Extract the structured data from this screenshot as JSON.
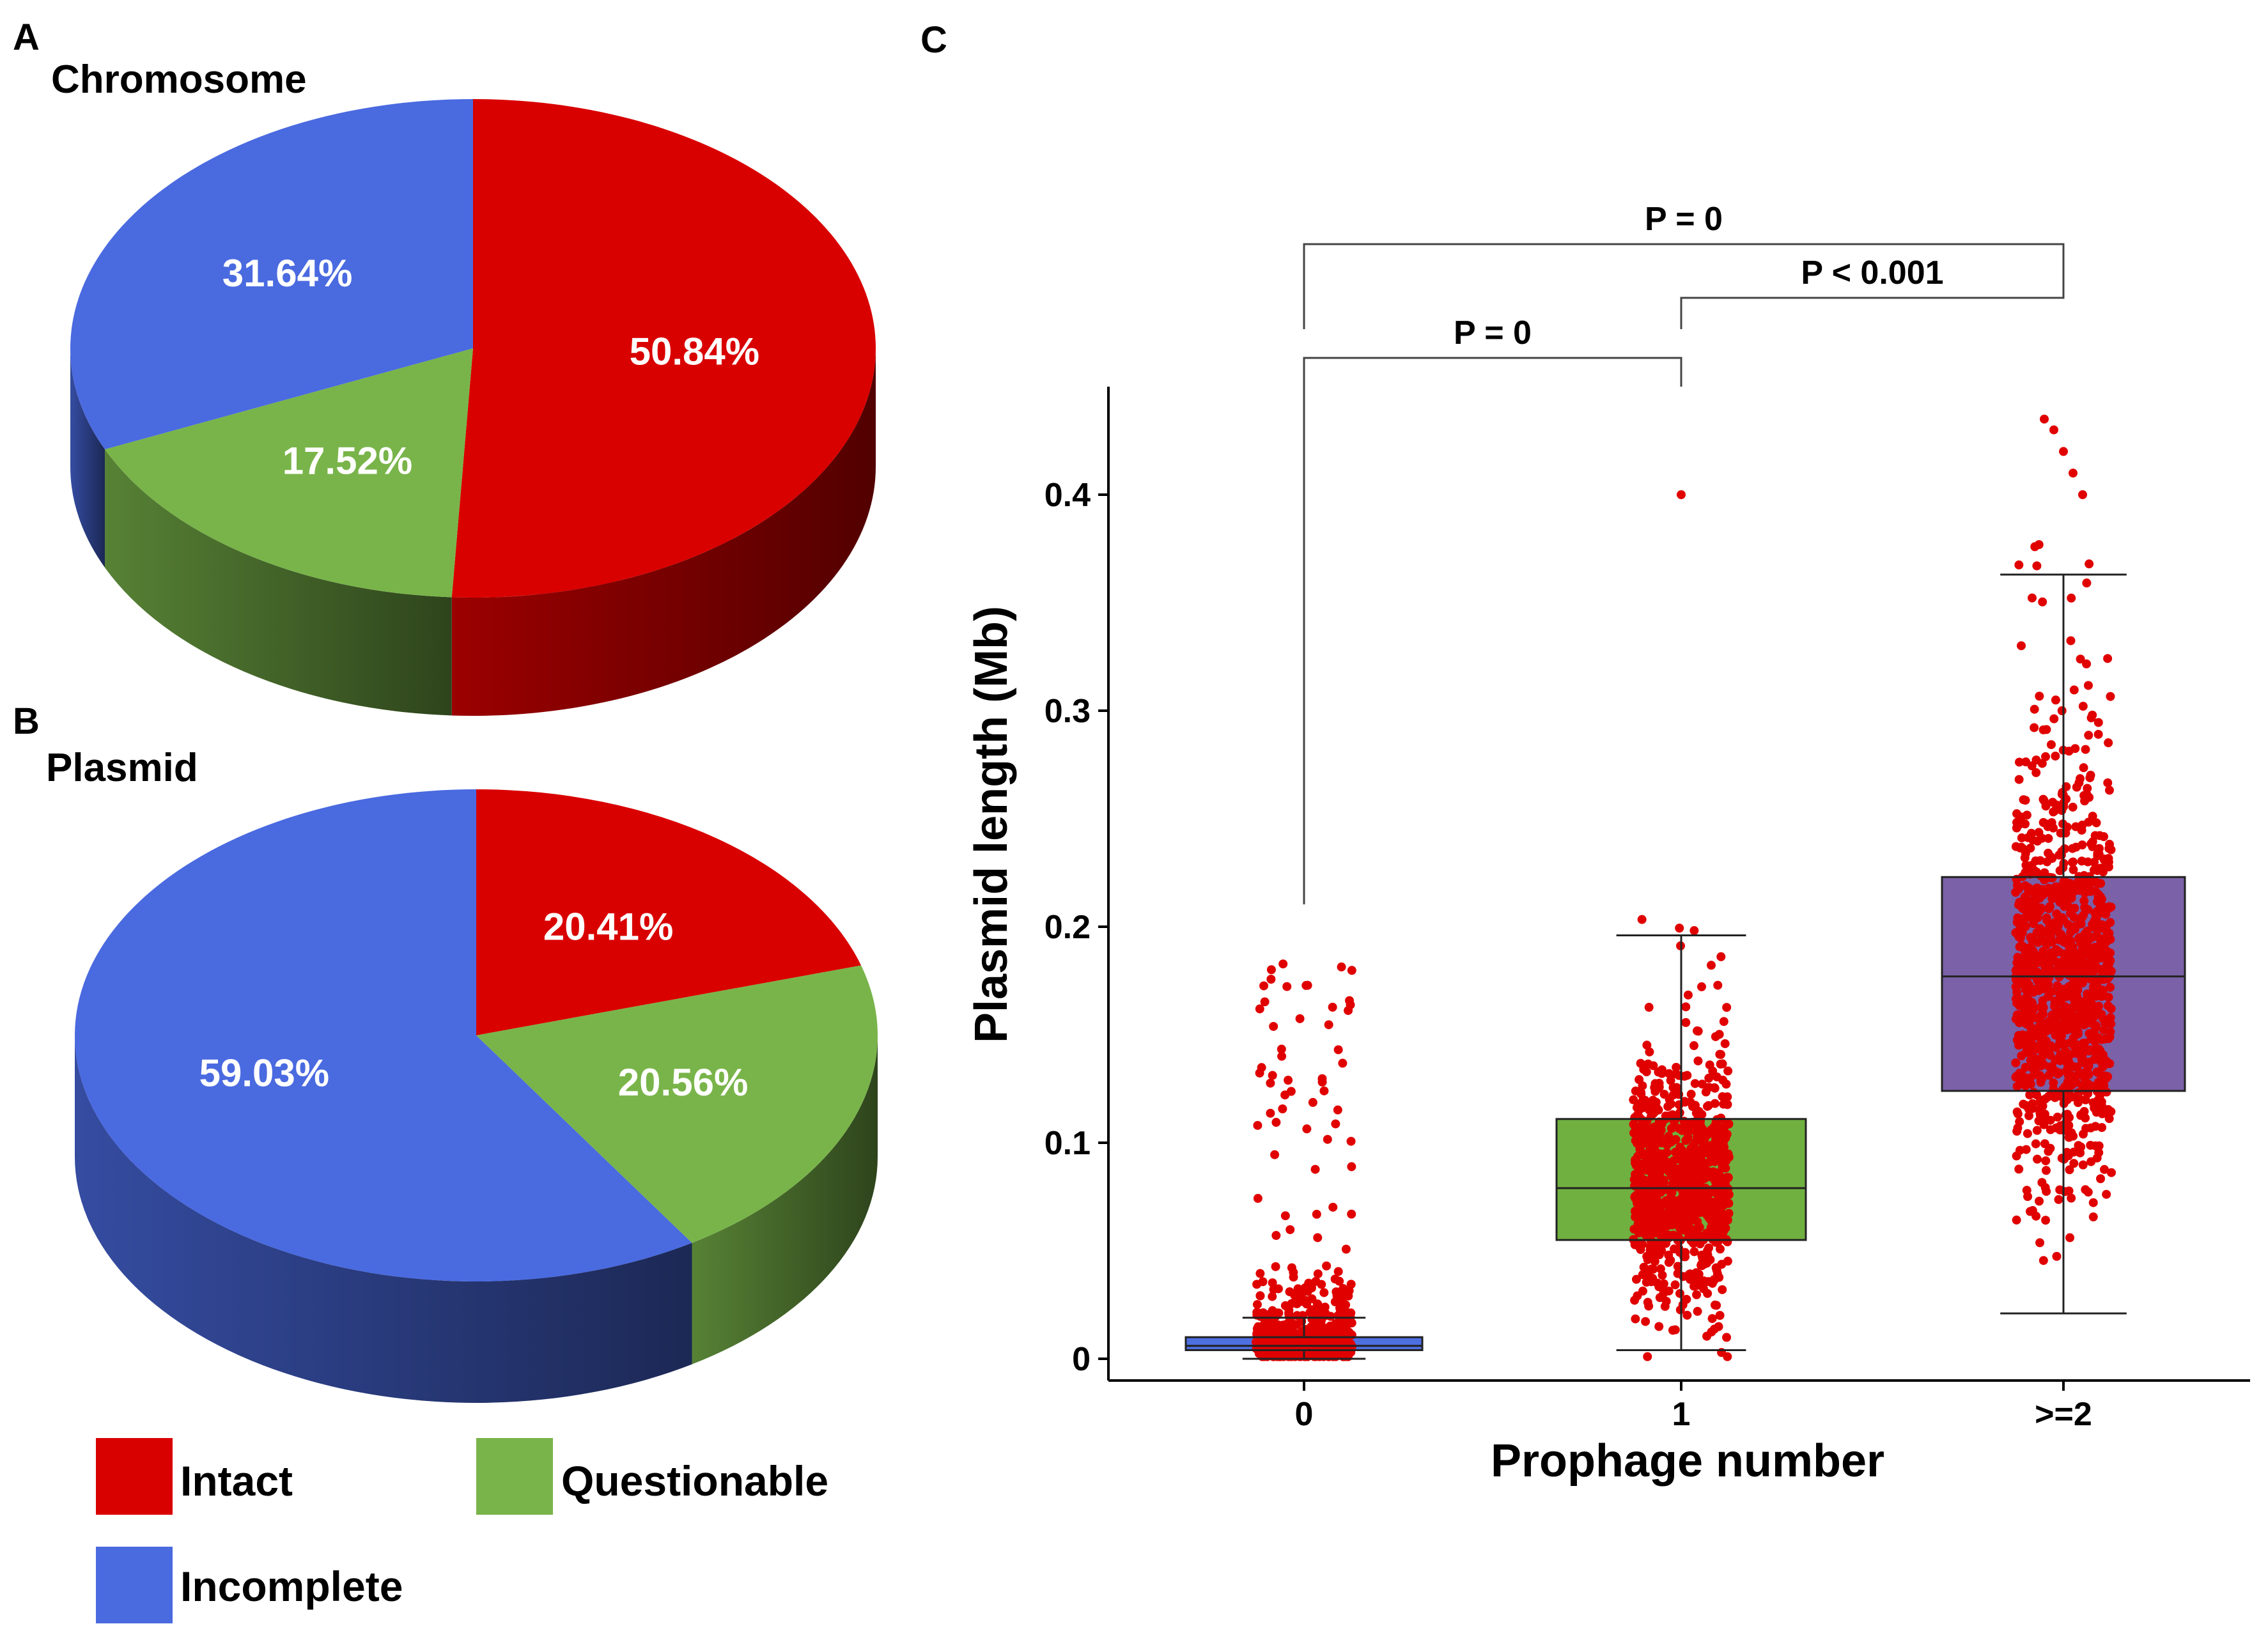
{
  "colors": {
    "intact": "#d90000",
    "questionable": "#79b44a",
    "incomplete": "#4a6ae0",
    "point": "#e00000",
    "box_0": "#4d6fe0",
    "box_1": "#70b040",
    "box_2": "#7b61a8"
  },
  "panel_labels": [
    "A",
    "B",
    "C"
  ],
  "legend": [
    {
      "key": "intact",
      "label": "Intact"
    },
    {
      "key": "questionable",
      "label": "Questionable"
    },
    {
      "key": "incomplete",
      "label": "Incomplete"
    }
  ],
  "chart_data": [
    {
      "type": "pie",
      "panel": "A",
      "title": "Chromosome",
      "start_angle_deg": 0,
      "slices": [
        {
          "category": "intact",
          "label": "Intact",
          "value": 50.84,
          "display": "50.84%"
        },
        {
          "category": "questionable",
          "label": "Questionable",
          "value": 17.52,
          "display": "17.52%"
        },
        {
          "category": "incomplete",
          "label": "Incomplete",
          "value": 31.64,
          "display": "31.64%"
        }
      ]
    },
    {
      "type": "pie",
      "panel": "B",
      "title": "Plasmid",
      "start_angle_deg": 0,
      "slices": [
        {
          "category": "intact",
          "label": "Intact",
          "value": 20.41,
          "display": "20.41%"
        },
        {
          "category": "questionable",
          "label": "Questionable",
          "value": 20.56,
          "display": "20.56%"
        },
        {
          "category": "incomplete",
          "label": "Incomplete",
          "value": 59.03,
          "display": "59.03%"
        }
      ]
    },
    {
      "type": "box",
      "panel": "C",
      "xlabel": "Prophage number",
      "ylabel": "Plasmid length (Mb)",
      "categories": [
        "0",
        "1",
        ">=2"
      ],
      "ylim": [
        -0.01,
        0.45
      ],
      "yticks": [
        0,
        0.1,
        0.2,
        0.3,
        0.4
      ],
      "ytick_labels": [
        "0",
        "0.1",
        "0.2",
        "0.3",
        "0.4"
      ],
      "boxes": [
        {
          "category": "0",
          "whisker_low": 0.0,
          "q1": 0.004,
          "median": 0.006,
          "q3": 0.01,
          "whisker_high": 0.019,
          "points_n": 520,
          "points_max": 0.19
        },
        {
          "category": "1",
          "whisker_low": 0.004,
          "q1": 0.055,
          "median": 0.079,
          "q3": 0.111,
          "whisker_high": 0.196,
          "points_n": 900,
          "points_max": 0.4
        },
        {
          "category": ">=2",
          "whisker_low": 0.021,
          "q1": 0.124,
          "median": 0.177,
          "q3": 0.223,
          "whisker_high": 0.363,
          "points_n": 1100,
          "points_max": 0.435
        }
      ],
      "comparisons": [
        {
          "from": "0",
          "to": ">=2",
          "label": "P = 0"
        },
        {
          "from": "1",
          "to": ">=2",
          "label": "P < 0.001"
        },
        {
          "from": "0",
          "to": "1",
          "label": "P = 0"
        }
      ]
    }
  ]
}
